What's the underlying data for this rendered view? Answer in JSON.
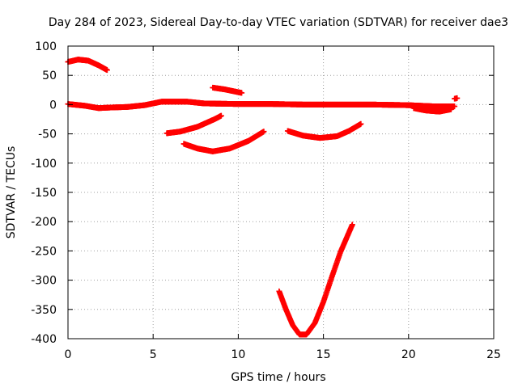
{
  "chart_data": {
    "type": "scatter",
    "title": "Day 284 of 2023, Sidereal Day-to-day VTEC variation (SDTVAR) for receiver dae3",
    "xlabel": "GPS time / hours",
    "ylabel": "SDTVAR / TECUs",
    "xlim": [
      0,
      25
    ],
    "ylim": [
      -400,
      100
    ],
    "xticks": [
      0,
      5,
      10,
      15,
      20,
      25
    ],
    "yticks": [
      100,
      50,
      0,
      -50,
      -100,
      -150,
      -200,
      -250,
      -300,
      -350,
      -400
    ],
    "grid": true,
    "legend": "none",
    "marker": "plus",
    "series": [
      {
        "color": "#ff0000",
        "tracks": [
          [
            [
              0,
              1
            ],
            [
              1,
              -2
            ],
            [
              1.8,
              -6
            ],
            [
              2.5,
              -5
            ],
            [
              3.5,
              -4
            ],
            [
              4.5,
              -1
            ],
            [
              5.5,
              5
            ],
            [
              7,
              5
            ],
            [
              8,
              2
            ],
            [
              10,
              1
            ],
            [
              12,
              1
            ],
            [
              14,
              0
            ],
            [
              16,
              0
            ],
            [
              18,
              0
            ],
            [
              20,
              -1
            ],
            [
              21.5,
              -3
            ],
            [
              22.7,
              -3
            ]
          ],
          [
            [
              20.3,
              -6
            ],
            [
              21,
              -10
            ],
            [
              21.8,
              -12
            ],
            [
              22.5,
              -8
            ]
          ],
          [
            [
              22.7,
              10
            ],
            [
              22.85,
              11
            ]
          ],
          [
            [
              0,
              73
            ],
            [
              0.6,
              77
            ],
            [
              1.2,
              75
            ],
            [
              1.8,
              67
            ],
            [
              2.3,
              59
            ]
          ],
          [
            [
              5.8,
              -49
            ],
            [
              6.6,
              -46
            ],
            [
              7.6,
              -38
            ],
            [
              8.6,
              -25
            ],
            [
              9,
              -19
            ]
          ],
          [
            [
              6.8,
              -67
            ],
            [
              7.6,
              -75
            ],
            [
              8.5,
              -80
            ],
            [
              9.5,
              -75
            ],
            [
              10.6,
              -62
            ],
            [
              11.5,
              -46
            ]
          ],
          [
            [
              8.5,
              29
            ],
            [
              9.2,
              26
            ],
            [
              10.2,
              20
            ]
          ],
          [
            [
              12.9,
              -45
            ],
            [
              13.8,
              -53
            ],
            [
              14.8,
              -57
            ],
            [
              15.8,
              -54
            ],
            [
              16.5,
              -45
            ],
            [
              17.2,
              -33
            ]
          ],
          [
            [
              12.4,
              -319
            ],
            [
              12.8,
              -350
            ],
            [
              13.2,
              -377
            ],
            [
              13.6,
              -393
            ],
            [
              14,
              -393
            ],
            [
              14.5,
              -373
            ],
            [
              15,
              -337
            ],
            [
              15.5,
              -294
            ],
            [
              16,
              -252
            ],
            [
              16.7,
              -205
            ]
          ]
        ]
      }
    ]
  }
}
